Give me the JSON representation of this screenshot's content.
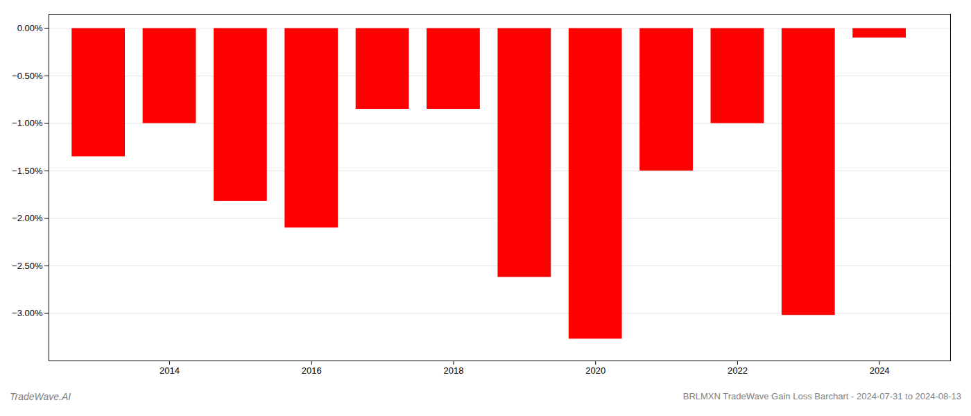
{
  "chart_data": {
    "type": "bar",
    "x": [
      2013,
      2014,
      2015,
      2016,
      2017,
      2018,
      2019,
      2020,
      2021,
      2022,
      2023,
      2024
    ],
    "values": [
      -1.35,
      -1.0,
      -1.82,
      -2.1,
      -0.85,
      -0.85,
      -2.62,
      -3.27,
      -1.5,
      -1.0,
      -3.02,
      -0.1
    ],
    "color": "#ff0000",
    "xlim": [
      2012.3,
      2025.0
    ],
    "xticks": [
      2014,
      2016,
      2018,
      2020,
      2022,
      2024
    ],
    "ylim": [
      -3.5,
      0.15
    ],
    "yticks": [
      {
        "value": 0.0,
        "label": "0.00%"
      },
      {
        "value": -0.5,
        "label": "−0.50%"
      },
      {
        "value": -1.0,
        "label": "−1.00%"
      },
      {
        "value": -1.5,
        "label": "−1.50%"
      },
      {
        "value": -2.0,
        "label": "−2.00%"
      },
      {
        "value": -2.5,
        "label": "−2.50%"
      },
      {
        "value": -3.0,
        "label": "−3.00%"
      }
    ],
    "grid": true,
    "annotations": [
      "TradeWave.AI",
      "BRLMXN TradeWave Gain Loss Barchart - 2024-07-31 to 2024-08-13"
    ]
  }
}
